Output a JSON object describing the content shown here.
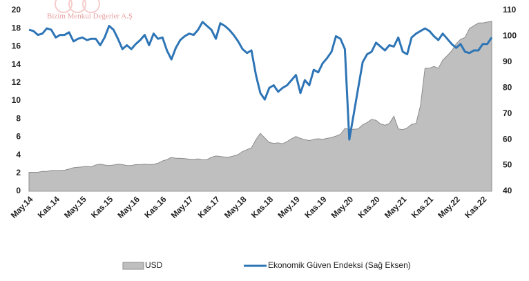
{
  "watermark": "Bizim Menkul Değerler A.Ş",
  "chart_data": {
    "type": "area_line",
    "categories": [
      "May.14",
      null,
      null,
      null,
      null,
      null,
      "Kas.14",
      null,
      null,
      null,
      null,
      null,
      "May.15",
      null,
      null,
      null,
      null,
      null,
      "Kas.15",
      null,
      null,
      null,
      null,
      null,
      "May.16",
      null,
      null,
      null,
      null,
      null,
      "Kas.16",
      null,
      null,
      null,
      null,
      null,
      "May.17",
      null,
      null,
      null,
      null,
      null,
      "Kas.17",
      null,
      null,
      null,
      null,
      null,
      "May.18",
      null,
      null,
      null,
      null,
      null,
      "Kas.18",
      null,
      null,
      null,
      null,
      null,
      "May.19",
      null,
      null,
      null,
      null,
      null,
      "Kas.19",
      null,
      null,
      null,
      null,
      null,
      "May.20",
      null,
      null,
      null,
      null,
      null,
      "Kas.20",
      null,
      null,
      null,
      null,
      null,
      "May.21",
      null,
      null,
      null,
      null,
      null,
      "Kas.21",
      null,
      null,
      null,
      null,
      null,
      "May.22",
      null,
      null,
      null,
      null,
      null,
      "Kas.22",
      null,
      null
    ],
    "series": [
      {
        "name": "USD",
        "color": "#bfbfbf",
        "values": [
          2.1,
          2.1,
          2.1,
          2.2,
          2.2,
          2.3,
          2.3,
          2.3,
          2.33,
          2.45,
          2.6,
          2.65,
          2.7,
          2.75,
          2.7,
          2.9,
          3.0,
          2.9,
          2.85,
          2.9,
          3.0,
          2.95,
          2.85,
          2.85,
          2.95,
          2.95,
          3.0,
          2.95,
          2.98,
          3.1,
          3.35,
          3.5,
          3.75,
          3.65,
          3.65,
          3.6,
          3.55,
          3.52,
          3.58,
          3.5,
          3.5,
          3.75,
          3.9,
          3.85,
          3.78,
          3.78,
          3.9,
          4.05,
          4.4,
          4.6,
          4.8,
          5.7,
          6.4,
          5.9,
          5.4,
          5.3,
          5.35,
          5.25,
          5.5,
          5.8,
          6.05,
          5.85,
          5.7,
          5.6,
          5.75,
          5.8,
          5.75,
          5.85,
          5.95,
          6.1,
          6.3,
          6.95,
          6.85,
          6.85,
          6.9,
          7.35,
          7.6,
          7.95,
          7.85,
          7.45,
          7.3,
          7.5,
          8.3,
          6.9,
          6.8,
          7.0,
          7.4,
          7.5,
          9.5,
          13.6,
          13.6,
          13.8,
          13.6,
          14.5,
          15.0,
          15.5,
          16.3,
          16.8,
          17.0,
          18.0,
          18.3,
          18.6,
          18.6,
          18.7,
          18.8
        ]
      },
      {
        "name": "Ekonomik Güven Endeksi (Sağ Eksen)",
        "color": "#2e75b6",
        "axis": "y2",
        "values": [
          102.5,
          102,
          100.5,
          101,
          103,
          102.5,
          99.5,
          100.5,
          100.5,
          101.5,
          98,
          99,
          99.5,
          98.5,
          99,
          99,
          96.5,
          99.5,
          104,
          102.5,
          99,
          95,
          96.5,
          95,
          97,
          98.5,
          100.5,
          96.5,
          101,
          99,
          99.5,
          94.5,
          91,
          95.5,
          98.5,
          100,
          101,
          100.5,
          102.5,
          105.5,
          104,
          102.5,
          99,
          105,
          104,
          102.5,
          100.5,
          98,
          95,
          93.5,
          94.5,
          85,
          78,
          75.5,
          80,
          81,
          78.5,
          80,
          81,
          83,
          85,
          78,
          83,
          81,
          87,
          86,
          89.5,
          91.5,
          94,
          100,
          99,
          95,
          60,
          70,
          80,
          90,
          93,
          94,
          97.5,
          96,
          94.5,
          96.5,
          96,
          99.5,
          94,
          93,
          99.5,
          101,
          102,
          103,
          102,
          100,
          98.5,
          101,
          99,
          97,
          95.5,
          97,
          94,
          93.5,
          94.5,
          94.5,
          97,
          97,
          99.5
        ]
      }
    ],
    "ylim": [
      0,
      20
    ],
    "yticks": [
      0,
      2,
      4,
      6,
      8,
      10,
      12,
      14,
      16,
      18,
      20
    ],
    "y2lim": [
      40,
      110
    ],
    "y2ticks": [
      40,
      50,
      60,
      70,
      80,
      90,
      100,
      110
    ],
    "legend": "bottom"
  }
}
